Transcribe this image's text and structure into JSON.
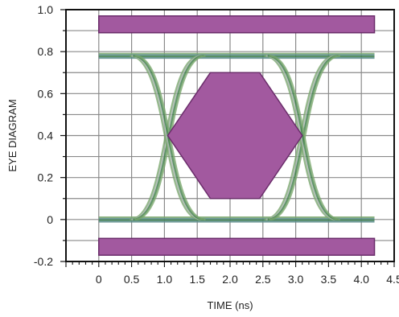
{
  "chart_data": {
    "type": "eye-diagram",
    "xlabel": "TIME (ns)",
    "ylabel": "EYE DIAGRAM",
    "xlim": [
      -0.5,
      4.5
    ],
    "ylim": [
      -0.2,
      1.0
    ],
    "x_ticks": [
      "0",
      "0.5",
      "1.0",
      "1.5",
      "2.0",
      "2.5",
      "3.0",
      "3.5",
      "4.0",
      "4.5"
    ],
    "x_tick_values": [
      0,
      0.5,
      1.0,
      1.5,
      2.0,
      2.5,
      3.0,
      3.5,
      4.0,
      4.5
    ],
    "y_ticks": [
      "-0.2",
      "0",
      "0.2",
      "0.4",
      "0.6",
      "0.8",
      "1.0"
    ],
    "y_tick_values": [
      -0.2,
      0,
      0.2,
      0.4,
      0.6,
      0.8,
      1.0
    ],
    "grid": true,
    "signal_levels": {
      "high": 0.78,
      "low": 0.0
    },
    "crossings": [
      {
        "x": 1.05,
        "y": 0.4
      },
      {
        "x": 3.1,
        "y": 0.4
      }
    ],
    "mask": {
      "top_bar": {
        "x": [
          0,
          4.2
        ],
        "y": [
          0.89,
          0.97
        ]
      },
      "bottom_bar": {
        "x": [
          0,
          4.2
        ],
        "y": [
          -0.17,
          -0.09
        ]
      },
      "hexagon": [
        [
          1.05,
          0.4
        ],
        [
          1.7,
          0.7
        ],
        [
          2.45,
          0.7
        ],
        [
          3.1,
          0.4
        ],
        [
          2.45,
          0.1
        ],
        [
          1.7,
          0.1
        ]
      ]
    },
    "colors": {
      "mask_fill": "#a2599f",
      "mask_stroke": "#6b2d6b",
      "trace_green": "#7aa86e",
      "trace_dark_green": "#3f7f4a",
      "trace_teal": "#5e8f8e",
      "trace_grey": "#a9b6ae",
      "grid": "#8a8a8a",
      "frame": "#111111"
    }
  }
}
